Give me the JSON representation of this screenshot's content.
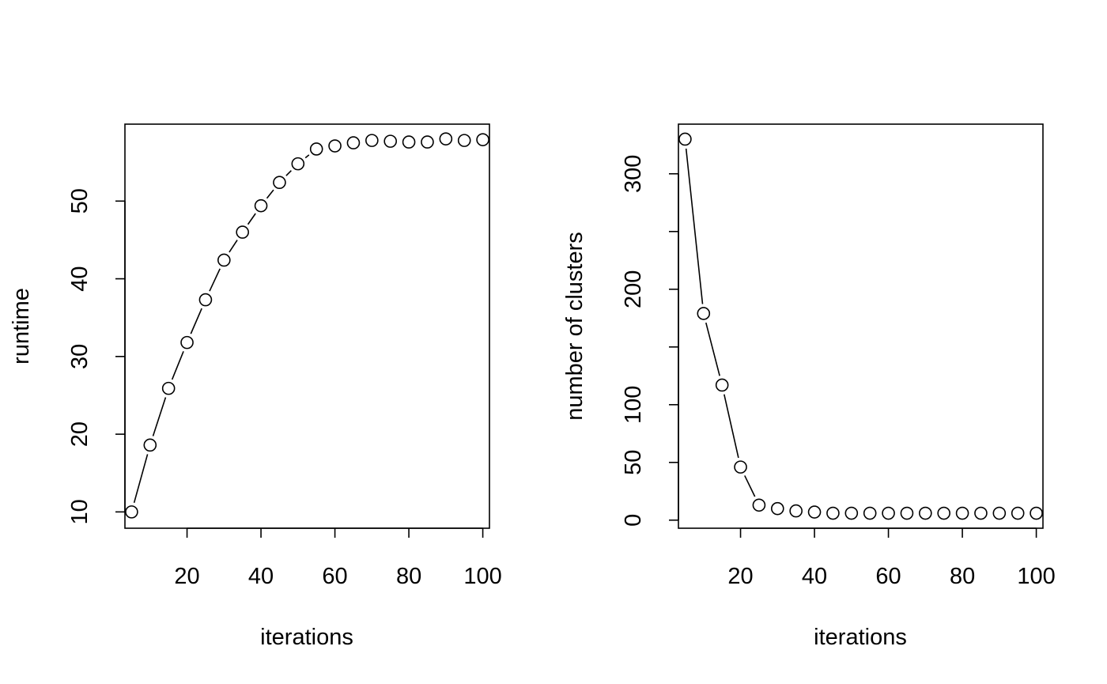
{
  "chart_data": [
    {
      "type": "line",
      "line_style": "b",
      "marker": "open-circle",
      "title": "",
      "xlabel": "iterations",
      "ylabel": "runtime",
      "xlim": [
        3.2,
        101.8
      ],
      "ylim": [
        7.9,
        59.9
      ],
      "xticks": [
        20,
        40,
        60,
        80,
        100
      ],
      "yticks": [
        10,
        20,
        30,
        40,
        50
      ],
      "grid": false,
      "legend": "none",
      "x": [
        5,
        10,
        15,
        20,
        25,
        30,
        35,
        40,
        45,
        50,
        55,
        60,
        65,
        70,
        75,
        80,
        85,
        90,
        95,
        100
      ],
      "y": [
        10.0,
        18.6,
        25.9,
        31.8,
        37.3,
        42.4,
        46.0,
        49.4,
        52.4,
        54.8,
        56.7,
        57.1,
        57.5,
        57.8,
        57.7,
        57.6,
        57.6,
        58.0,
        57.8,
        57.9
      ]
    },
    {
      "type": "line",
      "line_style": "b",
      "marker": "open-circle",
      "title": "",
      "xlabel": "iterations",
      "ylabel": "number of clusters",
      "xlim": [
        3.2,
        101.8
      ],
      "ylim": [
        -7,
        343
      ],
      "xticks": [
        20,
        40,
        60,
        80,
        100
      ],
      "yticks": [
        0,
        50,
        100,
        150,
        200,
        250,
        300
      ],
      "ytick_labels": [
        "0",
        "50",
        "100",
        "",
        "200",
        "",
        "300"
      ],
      "grid": false,
      "legend": "none",
      "x": [
        5,
        10,
        15,
        20,
        25,
        30,
        35,
        40,
        45,
        50,
        55,
        60,
        65,
        70,
        75,
        80,
        85,
        90,
        95,
        100
      ],
      "y": [
        330,
        179,
        117,
        46,
        13,
        10,
        8,
        7,
        6,
        6,
        6,
        6,
        6,
        6,
        6,
        6,
        6,
        6,
        6,
        6
      ]
    }
  ]
}
